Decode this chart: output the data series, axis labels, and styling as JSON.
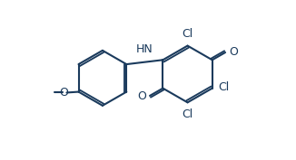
{
  "bg_color": "#ffffff",
  "line_color": "#1a3a5c",
  "line_width": 1.5,
  "font_size": 9,
  "fig_width": 3.26,
  "fig_height": 1.77,
  "dpi": 100,
  "xlim": [
    -0.3,
    5.8
  ],
  "ylim": [
    -0.4,
    3.6
  ]
}
